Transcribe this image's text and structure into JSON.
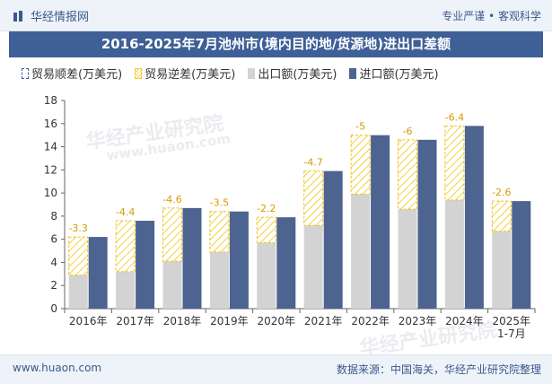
{
  "header": {
    "brand": "华经情报网",
    "tagline": "专业严谨 • 客观科学",
    "logo_icon": "bar-logo-icon"
  },
  "title": "2016-2025年7月池州市(境内目的地/货源地)进出口差额",
  "footer": {
    "website": "www.huaon.com",
    "source": "数据来源：中国海关，华经产业研究院整理"
  },
  "watermarks": [
    "华经产业研究院",
    "www.huaon.com",
    "华经产业研究院"
  ],
  "colors": {
    "title_bg": "#3e5f97",
    "export": "#d3d3d3",
    "import": "#4d6390",
    "deficit_stroke": "#f0c020",
    "surplus_stroke": "#3e5f97"
  },
  "chart_data": {
    "type": "bar",
    "categories": [
      "2016年",
      "2017年",
      "2018年",
      "2019年",
      "2020年",
      "2021年",
      "2022年",
      "2023年",
      "2024年",
      "2025年\n1-7月"
    ],
    "series": [
      {
        "name": "贸易顺差(万美元)",
        "values": [
          0,
          0,
          0,
          0,
          0,
          0,
          0,
          0,
          0,
          0
        ]
      },
      {
        "name": "贸易逆差(万美元)",
        "values": [
          -3.3,
          -4.4,
          -4.6,
          -3.5,
          -2.2,
          -4.7,
          -5,
          -6,
          -6.4,
          -2.6
        ]
      },
      {
        "name": "出口额(万美元)",
        "values": [
          2.9,
          3.2,
          4.1,
          4.9,
          5.7,
          7.2,
          9.9,
          8.6,
          9.4,
          6.7
        ]
      },
      {
        "name": "进口额(万美元)",
        "values": [
          6.2,
          7.6,
          8.7,
          8.4,
          7.9,
          11.9,
          15.0,
          14.6,
          15.8,
          9.3
        ]
      }
    ],
    "data_labels": [
      "-3.3",
      "-4.4",
      "-4.6",
      "-3.5",
      "-2.2",
      "-4.7",
      "-5",
      "-6",
      "-6.4",
      "-2.6"
    ],
    "ylim": [
      0,
      18
    ],
    "yticks": [
      0,
      2,
      4,
      6,
      8,
      10,
      12,
      14,
      16,
      18
    ],
    "legend_position": "top-left",
    "grid": false
  }
}
